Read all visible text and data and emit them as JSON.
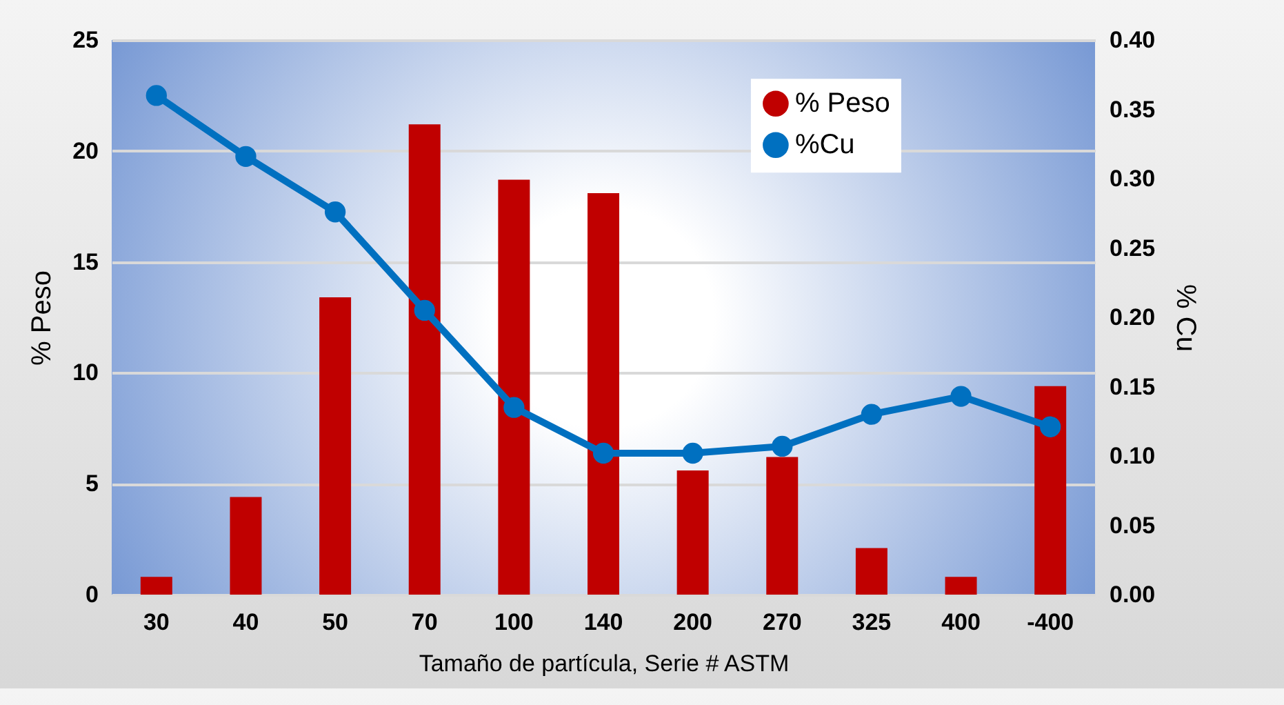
{
  "chart_data": {
    "type": "bar",
    "xlabel": "Tamaño de partícula, Serie # ASTM",
    "ylabel": "% Peso",
    "y2label": "% Cu",
    "categories": [
      "30",
      "40",
      "50",
      "70",
      "100",
      "140",
      "200",
      "270",
      "325",
      "400",
      "-400"
    ],
    "series": [
      {
        "name": "% Peso",
        "color": "#c00000",
        "values": [
          0.8,
          4.4,
          13.4,
          21.2,
          18.7,
          18.1,
          5.6,
          6.2,
          2.1,
          0.8,
          9.4
        ]
      },
      {
        "name": "%Cu",
        "type": "line",
        "axis": "y2",
        "color": "#0070c0",
        "values": [
          0.36,
          0.316,
          0.276,
          0.205,
          0.135,
          0.102,
          0.102,
          0.107,
          0.13,
          0.143,
          0.121
        ]
      }
    ],
    "ylim": [
      0,
      25
    ],
    "yticks": [
      0,
      5,
      10,
      15,
      20,
      25
    ],
    "y2lim": [
      0,
      0.4
    ],
    "y2ticks": [
      {
        "value": 0,
        "label": "0.00"
      },
      {
        "value": 0.05,
        "label": "0.05"
      },
      {
        "value": 0.1,
        "label": "0.10"
      },
      {
        "value": 0.15,
        "label": "0.15"
      },
      {
        "value": 0.2,
        "label": "0.20"
      },
      {
        "value": 0.25,
        "label": "0.25"
      },
      {
        "value": 0.3,
        "label": "0.30"
      },
      {
        "value": 0.35,
        "label": "0.35"
      },
      {
        "value": 0.4,
        "label": "0.40"
      }
    ],
    "grid": "y",
    "legend": "top right",
    "marker": "circle"
  }
}
